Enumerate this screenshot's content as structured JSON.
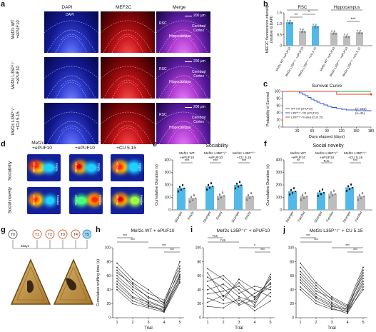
{
  "panel_labels": {
    "a": "a",
    "b": "b",
    "c": "c",
    "d": "d",
    "e": "e",
    "f": "f",
    "g": "g",
    "h": "h",
    "i": "i",
    "j": "j"
  },
  "panel_a": {
    "columns": [
      "DAPI",
      "MEF2C",
      "Merge"
    ],
    "rows": [
      "Mef2c WT\n+ePUF10",
      "Mef2c L35P⁺/⁻\n+ePUF10",
      "Mef2c L35P⁺/⁻\n+CU 5.15"
    ],
    "scale_bar": "200 μm",
    "region_labels": {
      "rsc": "RSC",
      "hippocampus": "Hippocampus",
      "cortex": "Cerebral\nCortex"
    },
    "colors": {
      "dapi": "#2b3bd9",
      "mef2c": "#d0141b",
      "merge": "#b040d0"
    }
  },
  "panel_d": {
    "columns": [
      "Mef2c WT\n+ePUF10",
      "Mef2c L35P⁺/⁻\n+ePUF10",
      "Mef2c L35P⁺/⁻\n+CU 5.15"
    ],
    "rows": [
      "Sociability",
      "Social novelty"
    ],
    "chamber_labels": {
      "stranger": "Stranger",
      "empty": "Empty",
      "familiar": "Familiar"
    }
  },
  "panel_g": {
    "trials": [
      "T0",
      "T1",
      "T2",
      "T3",
      "T4",
      "T5"
    ],
    "delay_label": "5days"
  },
  "chart_data": [
    {
      "id": "b",
      "type": "bar",
      "ylabel": "MEF2C fluorescence intensity\n(relative to DAPI)",
      "ylim": [
        0,
        1.5
      ],
      "yticks": [
        "0",
        "0.5",
        "1.0",
        "1.5"
      ],
      "group_titles": [
        "RSC",
        "Hippocampus"
      ],
      "categories": [
        "Mef2c WT +ePUF10",
        "Mef2c L35P⁺/⁻ +ePUF10",
        "Mef2c L35P⁺/⁻ +CU 5.15",
        "Mef2c WT +ePUF10",
        "Mef2c L35P⁺/⁻ +ePUF10",
        "Mef2c L35P⁺/⁻ +CU 5.15"
      ],
      "values": [
        1.08,
        0.68,
        0.9,
        0.6,
        0.45,
        0.62
      ],
      "errors": [
        0.08,
        0.07,
        0.06,
        0.05,
        0.04,
        0.04
      ],
      "colors": [
        "#52b8e8",
        "#bdbdbd",
        "#52b8e8",
        "#bdbdbd",
        "#bdbdbd",
        "#bdbdbd"
      ],
      "significance": [
        "*",
        "**",
        "***"
      ]
    },
    {
      "id": "c",
      "type": "line",
      "title": "Survival Curve",
      "xlabel": "Days elapsed (days)",
      "ylabel": "Probability of Survival",
      "xlim": [
        0,
        180
      ],
      "ylim": [
        0,
        100
      ],
      "xticks": [
        "30",
        "60",
        "90",
        "120",
        "150",
        "180"
      ],
      "yticks": [
        "0",
        "20",
        "40",
        "60",
        "80",
        "100"
      ],
      "series": [
        {
          "name": "WT-Ctrl (ePUF10)",
          "color": "#2ca02c",
          "x": [
            0,
            180
          ],
          "y": [
            100,
            100
          ]
        },
        {
          "name": "L35P⁺/⁻-Ctrl (ePUF10)",
          "color": "#2c55d6",
          "x": [
            0,
            34,
            40,
            46,
            52,
            58,
            64,
            70,
            76,
            84,
            92,
            100,
            110,
            120,
            130,
            150,
            180
          ],
          "y": [
            100,
            96,
            92,
            88,
            83,
            78,
            74,
            70,
            66,
            62,
            58,
            55,
            52,
            50,
            48,
            46,
            44
          ]
        },
        {
          "name": "L35P⁺/⁻-Treated (CU5.15)",
          "color": "#e04428",
          "x": [
            0,
            110,
            180
          ],
          "y": [
            100,
            92,
            92
          ]
        }
      ],
      "annotations": [
        "(n=162)",
        "(n=41)"
      ]
    },
    {
      "id": "e",
      "type": "bar",
      "title": "Sociability",
      "ylabel": "Cumulative Duration (s)",
      "ylim": [
        0,
        400
      ],
      "yticks": [
        "0",
        "100",
        "200",
        "300",
        "400"
      ],
      "group_titles": [
        "Mef2c WT\n+ePUF10",
        "Mef2c L35P⁺/⁻\n+ePUF10",
        "Mef2c L35P⁺/⁻\n+CU 5.15"
      ],
      "categories": [
        "Stranger",
        "Empty",
        "Stranger",
        "Empty",
        "Stranger",
        "Empty"
      ],
      "values": [
        175,
        95,
        190,
        115,
        200,
        110
      ],
      "colors": [
        "#52b8e8",
        "#bdbdbd",
        "#52b8e8",
        "#bdbdbd",
        "#52b8e8",
        "#bdbdbd"
      ],
      "significance": [
        "***",
        "***",
        "***"
      ]
    },
    {
      "id": "f",
      "type": "bar",
      "title": "Social novelty",
      "ylabel": "Cumulative Duration (s)",
      "ylim": [
        0,
        400
      ],
      "yticks": [
        "0",
        "100",
        "200",
        "300",
        "400"
      ],
      "group_titles": [
        "Mef2c WT\n+ePUF10",
        "Mef2c L35P⁺/⁻\n+ePUF10",
        "Mef2c L35P⁺/⁻\n+CU 5.15"
      ],
      "categories": [
        "Stranger",
        "Familiar",
        "Stranger",
        "Familiar",
        "Stranger",
        "Familiar"
      ],
      "values": [
        150,
        110,
        140,
        130,
        180,
        110
      ],
      "colors": [
        "#52b8e8",
        "#bdbdbd",
        "#52b8e8",
        "#bdbdbd",
        "#52b8e8",
        "#bdbdbd"
      ],
      "significance": [
        "**",
        "n.s.",
        "***"
      ]
    },
    {
      "id": "h",
      "type": "line",
      "title": "Mef2c WT + ePUF10",
      "xlabel": "Trial",
      "ylabel": "Cumulative sniffing time (s)",
      "xlim": [
        1,
        5
      ],
      "ylim": [
        0,
        100
      ],
      "xticks": [
        "1",
        "2",
        "3",
        "4",
        "5"
      ],
      "yticks": [
        "0",
        "20",
        "40",
        "60",
        "80",
        "100"
      ],
      "series": [
        {
          "x": [
            1,
            2,
            3,
            4,
            5
          ],
          "y": [
            78,
            55,
            40,
            20,
            80
          ]
        },
        {
          "x": [
            1,
            2,
            3,
            4,
            5
          ],
          "y": [
            72,
            50,
            35,
            25,
            74
          ]
        },
        {
          "x": [
            1,
            2,
            3,
            4,
            5
          ],
          "y": [
            68,
            44,
            30,
            18,
            70
          ]
        },
        {
          "x": [
            1,
            2,
            3,
            4,
            5
          ],
          "y": [
            64,
            48,
            28,
            22,
            66
          ]
        },
        {
          "x": [
            1,
            2,
            3,
            4,
            5
          ],
          "y": [
            60,
            40,
            24,
            15,
            62
          ]
        },
        {
          "x": [
            1,
            2,
            3,
            4,
            5
          ],
          "y": [
            56,
            36,
            20,
            10,
            60
          ]
        },
        {
          "x": [
            1,
            2,
            3,
            4,
            5
          ],
          "y": [
            52,
            30,
            22,
            14,
            58
          ]
        },
        {
          "x": [
            1,
            2,
            3,
            4,
            5
          ],
          "y": [
            48,
            28,
            18,
            9,
            55
          ]
        },
        {
          "x": [
            1,
            2,
            3,
            4,
            5
          ],
          "y": [
            44,
            24,
            16,
            12,
            52
          ]
        },
        {
          "x": [
            1,
            2,
            3,
            4,
            5
          ],
          "y": [
            40,
            20,
            14,
            8,
            50
          ]
        }
      ],
      "significance": [
        "***",
        "***",
        "***",
        "***"
      ]
    },
    {
      "id": "i",
      "type": "line",
      "title": "Mef2c L35P⁺/⁻ + ePUF10",
      "xlabel": "Trial",
      "ylabel": "",
      "xlim": [
        1,
        5
      ],
      "ylim": [
        0,
        100
      ],
      "xticks": [
        "1",
        "2",
        "3",
        "4",
        "5"
      ],
      "yticks": [
        "0",
        "20",
        "40",
        "60",
        "80",
        "100"
      ],
      "series": [
        {
          "x": [
            1,
            2,
            3,
            4,
            5
          ],
          "y": [
            70,
            55,
            35,
            45,
            40
          ]
        },
        {
          "x": [
            1,
            2,
            3,
            4,
            5
          ],
          "y": [
            64,
            30,
            50,
            28,
            55
          ]
        },
        {
          "x": [
            1,
            2,
            3,
            4,
            5
          ],
          "y": [
            58,
            42,
            20,
            35,
            48
          ]
        },
        {
          "x": [
            1,
            2,
            3,
            4,
            5
          ],
          "y": [
            52,
            60,
            40,
            18,
            62
          ]
        },
        {
          "x": [
            1,
            2,
            3,
            4,
            5
          ],
          "y": [
            46,
            25,
            55,
            40,
            30
          ]
        },
        {
          "x": [
            1,
            2,
            3,
            4,
            5
          ],
          "y": [
            40,
            48,
            30,
            22,
            58
          ]
        },
        {
          "x": [
            1,
            2,
            3,
            4,
            5
          ],
          "y": [
            34,
            38,
            45,
            30,
            44
          ]
        },
        {
          "x": [
            1,
            2,
            3,
            4,
            5
          ],
          "y": [
            28,
            20,
            25,
            15,
            36
          ]
        },
        {
          "x": [
            1,
            2,
            3,
            4,
            5
          ],
          "y": [
            22,
            32,
            18,
            26,
            50
          ]
        },
        {
          "x": [
            1,
            2,
            3,
            4,
            5
          ],
          "y": [
            16,
            14,
            28,
            10,
            24
          ]
        }
      ],
      "significance": [
        "n.s.",
        "n.s.",
        "*",
        "***"
      ]
    },
    {
      "id": "j",
      "type": "line",
      "title": "Mef2c L35P⁺/⁻ + CU 5.15",
      "xlabel": "Trial",
      "ylabel": "",
      "xlim": [
        1,
        5
      ],
      "ylim": [
        0,
        100
      ],
      "xticks": [
        "1",
        "2",
        "3",
        "4",
        "5"
      ],
      "yticks": [
        "0",
        "20",
        "40",
        "60",
        "80",
        "100"
      ],
      "series": [
        {
          "x": [
            1,
            2,
            3,
            4,
            5
          ],
          "y": [
            78,
            50,
            30,
            18,
            72
          ]
        },
        {
          "x": [
            1,
            2,
            3,
            4,
            5
          ],
          "y": [
            72,
            46,
            26,
            14,
            68
          ]
        },
        {
          "x": [
            1,
            2,
            3,
            4,
            5
          ],
          "y": [
            66,
            42,
            22,
            12,
            64
          ]
        },
        {
          "x": [
            1,
            2,
            3,
            4,
            5
          ],
          "y": [
            62,
            38,
            28,
            16,
            60
          ]
        },
        {
          "x": [
            1,
            2,
            3,
            4,
            5
          ],
          "y": [
            58,
            34,
            20,
            10,
            56
          ]
        },
        {
          "x": [
            1,
            2,
            3,
            4,
            5
          ],
          "y": [
            54,
            30,
            18,
            8,
            52
          ]
        },
        {
          "x": [
            1,
            2,
            3,
            4,
            5
          ],
          "y": [
            50,
            28,
            16,
            12,
            48
          ]
        },
        {
          "x": [
            1,
            2,
            3,
            4,
            5
          ],
          "y": [
            44,
            24,
            14,
            6,
            44
          ]
        },
        {
          "x": [
            1,
            2,
            3,
            4,
            5
          ],
          "y": [
            40,
            20,
            12,
            9,
            40
          ]
        }
      ],
      "significance": [
        "***",
        "***",
        "***",
        "***"
      ]
    }
  ]
}
